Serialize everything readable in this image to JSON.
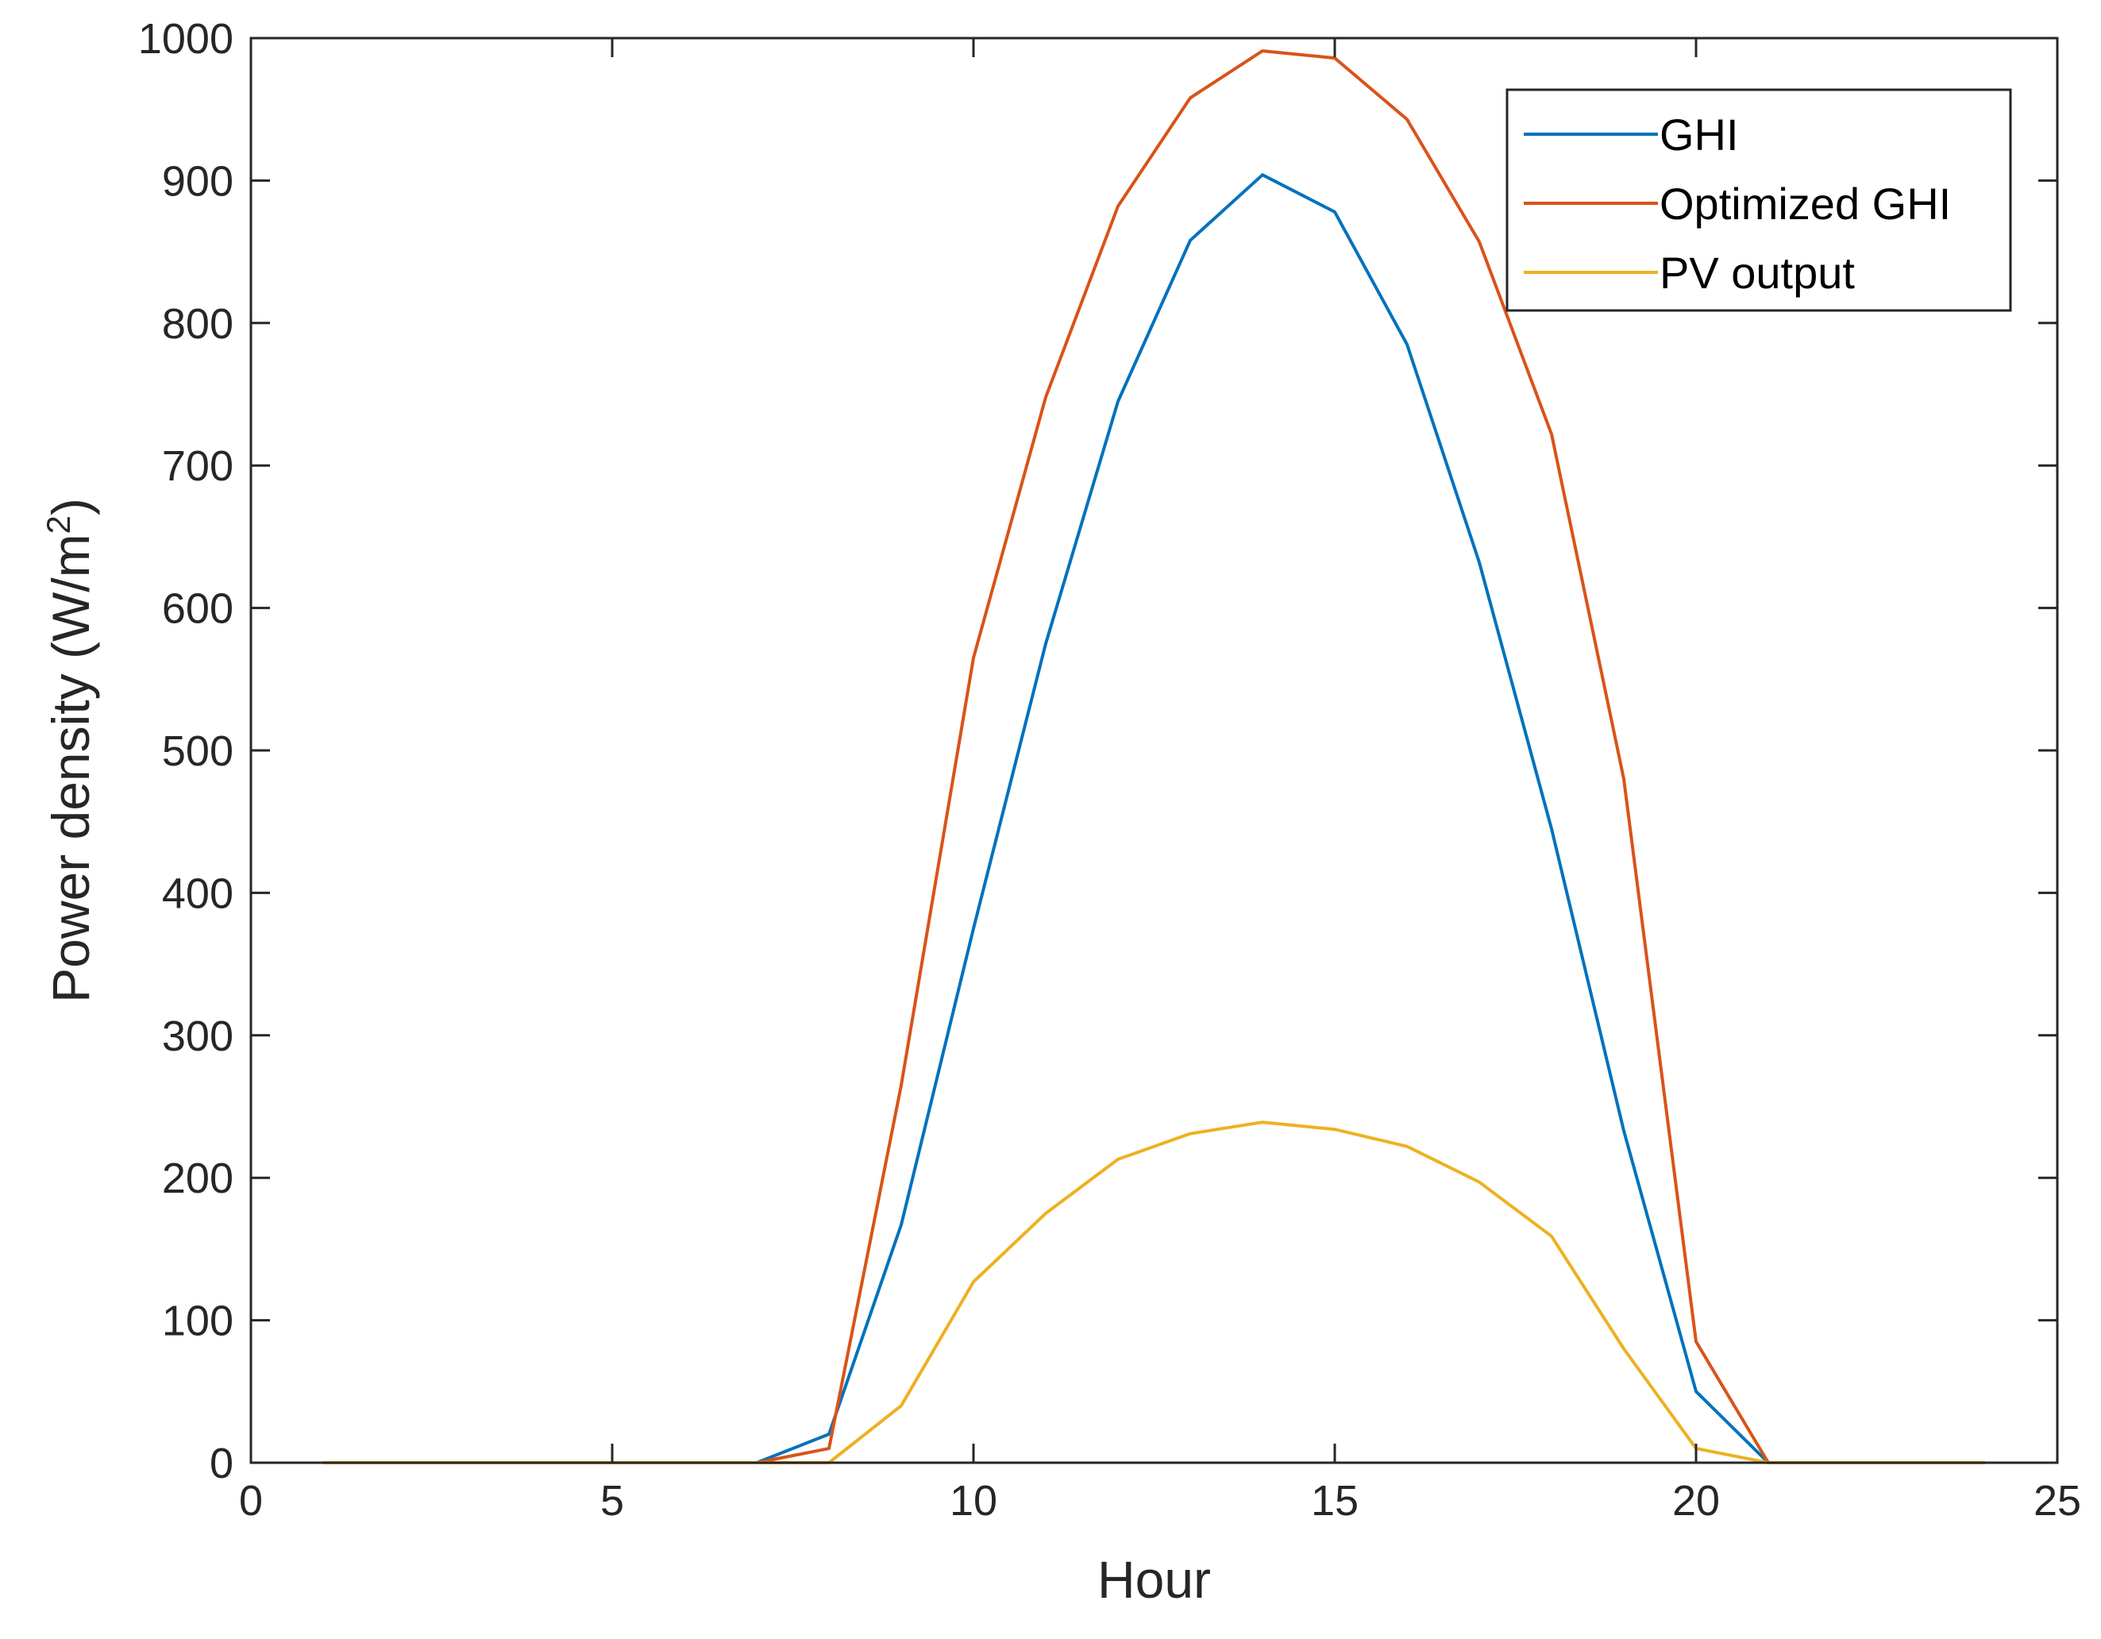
{
  "chart_data": {
    "type": "line",
    "xlabel": "Hour",
    "ylabel": "Power density (W/m",
    "ylabel_sup": "2",
    "ylabel_end": ")",
    "xlim": [
      0,
      25
    ],
    "ylim": [
      0,
      1000
    ],
    "xticks": [
      0,
      5,
      10,
      15,
      20,
      25
    ],
    "yticks": [
      0,
      100,
      200,
      300,
      400,
      500,
      600,
      700,
      800,
      900,
      1000
    ],
    "grid": false,
    "legend_position": "top-right",
    "x": [
      1,
      2,
      3,
      4,
      5,
      6,
      7,
      8,
      9,
      10,
      11,
      12,
      13,
      14,
      15,
      16,
      17,
      18,
      19,
      20,
      21,
      22,
      23,
      24
    ],
    "series": [
      {
        "name": "GHI",
        "color": "#0072BD",
        "values": [
          0,
          0,
          0,
          0,
          0,
          0,
          0,
          20,
          167,
          375,
          575,
          745,
          858,
          904,
          878,
          785,
          632,
          445,
          233,
          50,
          0,
          0,
          0,
          0
        ]
      },
      {
        "name": "Optimized GHI",
        "color": "#D95319",
        "values": [
          0,
          0,
          0,
          0,
          0,
          0,
          0,
          10,
          265,
          565,
          748,
          882,
          958,
          991,
          986,
          943,
          857,
          722,
          480,
          85,
          0,
          0,
          0,
          0
        ]
      },
      {
        "name": "PV output",
        "color": "#EDB120",
        "values": [
          0,
          0,
          0,
          0,
          0,
          0,
          0,
          0,
          40,
          127,
          175,
          213,
          231,
          239,
          234,
          222,
          197,
          159,
          80,
          10,
          0,
          0,
          0,
          0
        ]
      }
    ]
  }
}
